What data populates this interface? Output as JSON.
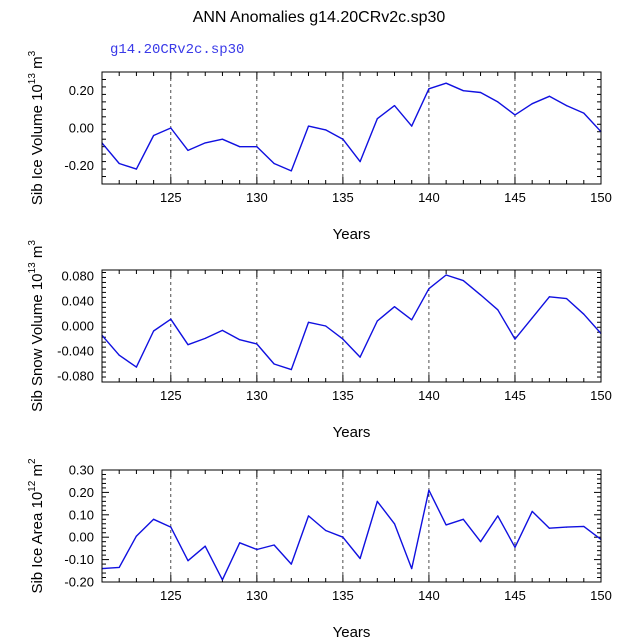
{
  "figure": {
    "title": "ANN Anomalies g14.20CRv2c.sp30",
    "case_label": "g14.20CRv2c.sp30",
    "line_color": "#1010e0"
  },
  "chart_data": [
    {
      "type": "line",
      "name": "ice-volume",
      "ylabel": "Sib Ice Volume 10",
      "ylabel_exp": "13",
      "ylabel_unit": " m",
      "ylabel_unit_exp": "3",
      "xlabel": "Years",
      "xlim": [
        121,
        150
      ],
      "ylim": [
        -0.3,
        0.3
      ],
      "xticks": [
        125,
        130,
        135,
        140,
        145,
        150
      ],
      "xtick_labels": [
        "125",
        "130",
        "135",
        "140",
        "145",
        "150"
      ],
      "yticks": [
        0.2,
        0.0,
        -0.2
      ],
      "ytick_labels": [
        "0.20",
        "0.00",
        "-0.20"
      ],
      "grid_x": [
        125,
        130,
        135,
        140,
        145
      ],
      "x": [
        121,
        122,
        123,
        124,
        125,
        126,
        127,
        128,
        129,
        130,
        131,
        132,
        133,
        134,
        135,
        136,
        137,
        138,
        139,
        140,
        141,
        142,
        143,
        144,
        145,
        146,
        147,
        148,
        149,
        150
      ],
      "values": [
        -0.08,
        -0.19,
        -0.22,
        -0.04,
        0.0,
        -0.12,
        -0.08,
        -0.06,
        -0.1,
        -0.1,
        -0.19,
        -0.23,
        0.01,
        -0.01,
        -0.06,
        -0.18,
        0.05,
        0.12,
        0.01,
        0.21,
        0.24,
        0.2,
        0.19,
        0.14,
        0.07,
        0.13,
        0.17,
        0.12,
        0.08,
        -0.02
      ]
    },
    {
      "type": "line",
      "name": "snow-volume",
      "ylabel": "Sib Snow Volume 10",
      "ylabel_exp": "13",
      "ylabel_unit": " m",
      "ylabel_unit_exp": "3",
      "xlabel": "Years",
      "xlim": [
        121,
        150
      ],
      "ylim": [
        -0.09,
        0.09
      ],
      "xticks": [
        125,
        130,
        135,
        140,
        145,
        150
      ],
      "xtick_labels": [
        "125",
        "130",
        "135",
        "140",
        "145",
        "150"
      ],
      "yticks": [
        0.08,
        0.04,
        0.0,
        -0.04,
        -0.08
      ],
      "ytick_labels": [
        "0.080",
        "0.040",
        "0.000",
        "-0.040",
        "-0.080"
      ],
      "grid_x": [
        125,
        130,
        135,
        140,
        145
      ],
      "x": [
        121,
        122,
        123,
        124,
        125,
        126,
        127,
        128,
        129,
        130,
        131,
        132,
        133,
        134,
        135,
        136,
        137,
        138,
        139,
        140,
        141,
        142,
        143,
        144,
        145,
        146,
        147,
        148,
        149,
        150
      ],
      "values": [
        -0.015,
        -0.047,
        -0.066,
        -0.008,
        0.011,
        -0.03,
        -0.02,
        -0.007,
        -0.022,
        -0.029,
        -0.061,
        -0.07,
        0.006,
        0.0,
        -0.021,
        -0.05,
        0.008,
        0.031,
        0.01,
        0.06,
        0.082,
        0.073,
        0.05,
        0.026,
        -0.021,
        0.013,
        0.047,
        0.044,
        0.019,
        -0.012
      ]
    },
    {
      "type": "line",
      "name": "ice-area",
      "ylabel": "Sib Ice Area 10",
      "ylabel_exp": "12",
      "ylabel_unit": " m",
      "ylabel_unit_exp": "2",
      "xlabel": "Years",
      "xlim": [
        121,
        150
      ],
      "ylim": [
        -0.2,
        0.3
      ],
      "xticks": [
        125,
        130,
        135,
        140,
        145,
        150
      ],
      "xtick_labels": [
        "125",
        "130",
        "135",
        "140",
        "145",
        "150"
      ],
      "yticks": [
        0.3,
        0.2,
        0.1,
        0.0,
        -0.1,
        -0.2
      ],
      "ytick_labels": [
        "0.30",
        "0.20",
        "0.10",
        "0.00",
        "-0.10",
        "-0.20"
      ],
      "grid_x": [
        125,
        130,
        135,
        140,
        145
      ],
      "x": [
        121,
        122,
        123,
        124,
        125,
        126,
        127,
        128,
        129,
        130,
        131,
        132,
        133,
        134,
        135,
        136,
        137,
        138,
        139,
        140,
        141,
        142,
        143,
        144,
        145,
        146,
        147,
        148,
        149,
        150
      ],
      "values": [
        -0.14,
        -0.135,
        0.005,
        0.08,
        0.045,
        -0.105,
        -0.04,
        -0.19,
        -0.025,
        -0.055,
        -0.035,
        -0.12,
        0.095,
        0.03,
        0.0,
        -0.095,
        0.16,
        0.06,
        -0.14,
        0.21,
        0.055,
        0.08,
        -0.02,
        0.095,
        -0.045,
        0.115,
        0.04,
        0.045,
        0.048,
        -0.01
      ]
    }
  ]
}
